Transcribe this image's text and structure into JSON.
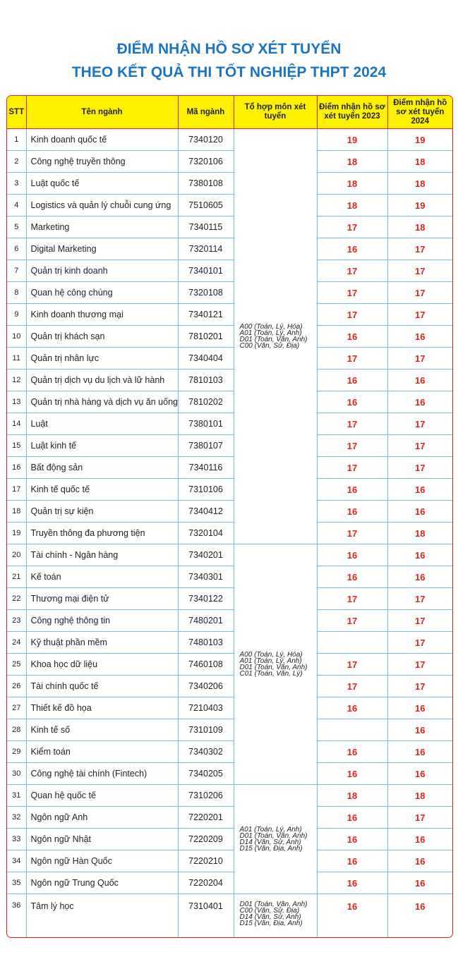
{
  "header": {
    "title_line1": "ĐIỂM NHẬN HỒ SƠ XÉT TUYỂN",
    "title_line2": "THEO KẾT QUẢ THI TỐT NGHIỆP THPT 2024"
  },
  "table": {
    "columns": [
      "STT",
      "Tên ngành",
      "Mã ngành",
      "Tổ hợp môn xét tuyển",
      "Điểm nhận hồ sơ xét tuyển 2023",
      "Điểm nhận hồ sơ xét tuyển 2024"
    ],
    "groups": [
      {
        "combos": [
          "A00 (Toán, Lý, Hóa)",
          "A01 (Toán, Lý, Anh)",
          "D01 (Toán, Văn, Anh)",
          "C00 (Văn, Sử, Địa)"
        ],
        "rows": [
          [
            1,
            "Kinh doanh quốc tế",
            "7340120",
            19,
            19
          ],
          [
            2,
            "Công nghệ truyền thông",
            "7320106",
            18,
            18
          ],
          [
            3,
            "Luật quốc tế",
            "7380108",
            18,
            18
          ],
          [
            4,
            "Logistics và quản lý chuỗi cung ứng",
            "7510605",
            18,
            19
          ],
          [
            5,
            "Marketing",
            "7340115",
            17,
            18
          ],
          [
            6,
            "Digital Marketing",
            "7320114",
            16,
            17
          ],
          [
            7,
            "Quản trị kinh doanh",
            "7340101",
            17,
            17
          ],
          [
            8,
            "Quan hệ công chúng",
            "7320108",
            17,
            17
          ],
          [
            9,
            "Kinh doanh thương mại",
            "7340121",
            17,
            17
          ],
          [
            10,
            "Quản trị khách sạn",
            "7810201",
            16,
            16
          ],
          [
            11,
            "Quản trị nhân lực",
            "7340404",
            17,
            17
          ],
          [
            12,
            "Quản trị dịch vụ du lịch và lữ hành",
            "7810103",
            16,
            16
          ],
          [
            13,
            "Quản trị nhà hàng và dịch vụ ăn uống",
            "7810202",
            16,
            16
          ],
          [
            14,
            "Luật",
            "7380101",
            17,
            17
          ],
          [
            15,
            "Luật kinh tế",
            "7380107",
            17,
            17
          ],
          [
            16,
            "Bất động sản",
            "7340116",
            17,
            17
          ],
          [
            17,
            "Kinh tế quốc tế",
            "7310106",
            16,
            16
          ],
          [
            18,
            "Quản trị sự kiện",
            "7340412",
            16,
            16
          ],
          [
            19,
            "Truyền thông đa phương tiện",
            "7320104",
            17,
            18
          ]
        ]
      },
      {
        "combos": [
          "A00 (Toán, Lý, Hóa)",
          "A01 (Toán, Lý, Anh)",
          "D01 (Toán, Văn, Anh)",
          "C01 (Toán, Văn, Lý)"
        ],
        "rows": [
          [
            20,
            "Tài chính - Ngân hàng",
            "7340201",
            16,
            16
          ],
          [
            21,
            "Kế toán",
            "7340301",
            16,
            16
          ],
          [
            22,
            "Thương mại điện tử",
            "7340122",
            17,
            17
          ],
          [
            23,
            "Công nghệ thông tin",
            "7480201",
            17,
            17
          ],
          [
            24,
            "Kỹ thuật phần mềm",
            "7480103",
            null,
            17
          ],
          [
            25,
            "Khoa học dữ liệu",
            "7460108",
            17,
            17
          ],
          [
            26,
            "Tài chính quốc tế",
            "7340206",
            17,
            17
          ],
          [
            27,
            "Thiết kế đồ họa",
            "7210403",
            16,
            16
          ],
          [
            28,
            "Kinh tế số",
            "7310109",
            null,
            16
          ],
          [
            29,
            "Kiểm toán",
            "7340302",
            16,
            16
          ],
          [
            30,
            "Công nghệ tài chính (Fintech)",
            "7340205",
            16,
            16
          ]
        ]
      },
      {
        "combos": [
          "A01 (Toán, Lý, Anh)",
          "D01 (Toán, Văn, Anh)",
          "D14 (Văn, Sử, Anh)",
          "D15 (Văn, Địa, Anh)"
        ],
        "rows": [
          [
            31,
            "Quan hệ quốc tế",
            "7310206",
            18,
            18
          ],
          [
            32,
            "Ngôn ngữ Anh",
            "7220201",
            16,
            17
          ],
          [
            33,
            "Ngôn ngữ Nhật",
            "7220209",
            16,
            16
          ],
          [
            34,
            "Ngôn ngữ Hàn Quốc",
            "7220210",
            16,
            16
          ],
          [
            35,
            "Ngôn ngữ Trung Quốc",
            "7220204",
            16,
            16
          ]
        ]
      },
      {
        "combos": [
          "D01 (Toán, Văn, Anh)",
          "C00 (Văn, Sử, Địa)",
          "D14 (Văn, Sử, Anh)",
          "D15 (Văn, Địa, Anh)"
        ],
        "rows": [
          [
            36,
            "Tâm lý học",
            "7310401",
            16,
            16
          ]
        ]
      }
    ]
  }
}
